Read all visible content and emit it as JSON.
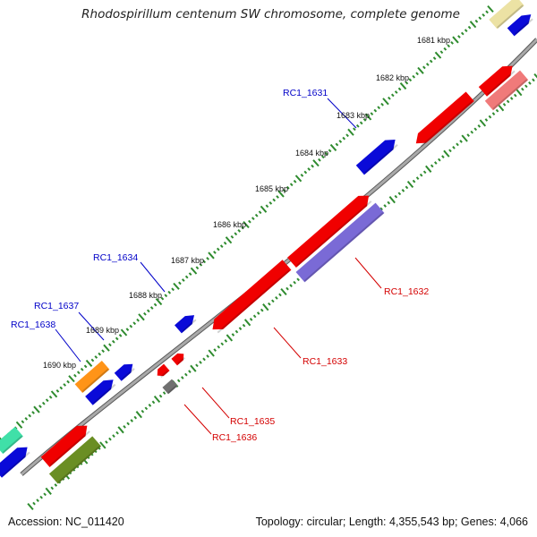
{
  "header": {
    "title": "Rhodospirillum centenum SW chromosome, complete genome"
  },
  "footer": {
    "accession": "Accession: NC_011420",
    "summary": "Topology: circular; Length: 4,355,543 bp; Genes: 4,066"
  },
  "scale_labels": [
    "1681 kbp",
    "1682 kbp",
    "1683 kbp",
    "1684 kbp",
    "1685 kbp",
    "1686 kbp",
    "1687 kbp",
    "1688 kbp",
    "1689 kbp",
    "1690 kbp"
  ],
  "gene_labels": {
    "outer": [
      "RC1_1631",
      "RC1_1634",
      "RC1_1637",
      "RC1_1638"
    ],
    "inner": [
      "RC1_1632",
      "RC1_1633",
      "RC1_1635",
      "RC1_1636"
    ]
  },
  "colors": {
    "backbone": "#8a8a8a",
    "tick_green": "#2e8b2e",
    "label_blue": "#0000c8",
    "label_red": "#d40000",
    "gene_blue": "#0a0ad8",
    "gene_red": "#f00000",
    "gene_purple": "#7a6ad6",
    "gene_pink": "#f07a7a",
    "gene_orange": "#ff9418",
    "gene_olive": "#6a8e23",
    "gene_gray": "#707070",
    "gene_teal": "#40e0a8",
    "gene_tan": "#ece2a4"
  }
}
